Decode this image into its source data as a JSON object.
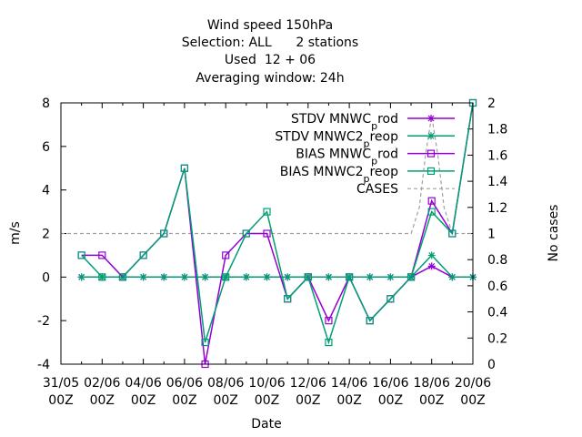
{
  "chart_data": {
    "type": "line",
    "title_lines": [
      "Wind speed 150hPa",
      "Selection: ALL      2 stations",
      "Used  12 + 06",
      "Averaging window: 24h"
    ],
    "xlabel": "Date",
    "ylabel": "m/s",
    "y2label": "No cases",
    "ylim": [
      -4,
      8
    ],
    "y2lim": [
      0,
      2
    ],
    "yticks": [
      "-4",
      "-2",
      "0",
      "2",
      "4",
      "6",
      "8"
    ],
    "y2ticks": [
      "0",
      "0.2",
      "0.4",
      "0.6",
      "0.8",
      "1",
      "1.2",
      "1.4",
      "1.6",
      "1.8",
      "2"
    ],
    "xlim": [
      0,
      20
    ],
    "xticks": [
      {
        "x": 0,
        "l1": "31/05",
        "l2": "00Z"
      },
      {
        "x": 2,
        "l1": "02/06",
        "l2": "00Z"
      },
      {
        "x": 4,
        "l1": "04/06",
        "l2": "00Z"
      },
      {
        "x": 6,
        "l1": "06/06",
        "l2": "00Z"
      },
      {
        "x": 8,
        "l1": "08/06",
        "l2": "00Z"
      },
      {
        "x": 10,
        "l1": "10/06",
        "l2": "00Z"
      },
      {
        "x": 12,
        "l1": "12/06",
        "l2": "00Z"
      },
      {
        "x": 14,
        "l1": "14/06",
        "l2": "00Z"
      },
      {
        "x": 16,
        "l1": "16/06",
        "l2": "00Z"
      },
      {
        "x": 18,
        "l1": "18/06",
        "l2": "00Z"
      },
      {
        "x": 20,
        "l1": "20/06",
        "l2": "00Z"
      }
    ],
    "legend_position": "top-right",
    "series": [
      {
        "name": "STDV MNWC_prod",
        "name_main": "STDV MNWC",
        "name_sub": "p",
        "name_tail": "rod",
        "color": "#9400d3",
        "marker": "star",
        "axis": "y",
        "x": [
          1,
          2,
          3,
          4,
          5,
          6,
          7,
          8,
          9,
          10,
          11,
          12,
          13,
          14,
          15,
          16,
          17,
          18,
          19,
          20
        ],
        "y": [
          0,
          0,
          0,
          0,
          0,
          0,
          0,
          0,
          0,
          0,
          0,
          0,
          0,
          0,
          0,
          0,
          0,
          0.5,
          0,
          0
        ]
      },
      {
        "name": "STDV MNWC2_preop",
        "name_main": "STDV MNWC2",
        "name_sub": "p",
        "name_tail": "reop",
        "color": "#009e73",
        "marker": "star",
        "axis": "y",
        "x": [
          1,
          2,
          3,
          4,
          5,
          6,
          7,
          8,
          9,
          10,
          11,
          12,
          13,
          14,
          15,
          16,
          17,
          18,
          19,
          20
        ],
        "y": [
          0,
          0,
          0,
          0,
          0,
          0,
          0,
          0,
          0,
          0,
          0,
          0,
          0,
          0,
          0,
          0,
          0,
          1,
          0,
          0
        ]
      },
      {
        "name": "BIAS MNWC_prod",
        "name_main": "BIAS MNWC",
        "name_sub": "p",
        "name_tail": "rod",
        "color": "#9400d3",
        "marker": "box",
        "axis": "y",
        "x": [
          1,
          2,
          3,
          4,
          5,
          6,
          7,
          8,
          9,
          10,
          11,
          12,
          13,
          14,
          15,
          16,
          17,
          18,
          19,
          20
        ],
        "y": [
          1,
          1,
          0,
          1,
          2,
          5,
          -4,
          1,
          2,
          2,
          -1,
          0,
          -2,
          0,
          -2,
          -1,
          0,
          3.5,
          2,
          8
        ]
      },
      {
        "name": "BIAS MNWC2_preop",
        "name_main": "BIAS MNWC2",
        "name_sub": "p",
        "name_tail": "reop",
        "color": "#009e73",
        "marker": "box",
        "axis": "y",
        "x": [
          1,
          2,
          3,
          4,
          5,
          6,
          7,
          8,
          9,
          10,
          11,
          12,
          13,
          14,
          15,
          16,
          17,
          18,
          19,
          20
        ],
        "y": [
          1,
          0,
          0,
          1,
          2,
          5,
          -3,
          0,
          2,
          3,
          -1,
          0,
          -3,
          0,
          -2,
          -1,
          0,
          3,
          2,
          8
        ]
      },
      {
        "name": "CASES",
        "name_main": "CASES",
        "name_sub": "",
        "name_tail": "",
        "color": "#a0a0a0",
        "marker": "none",
        "dash": true,
        "axis": "y2",
        "x": [
          0,
          1,
          2,
          3,
          4,
          5,
          6,
          7,
          8,
          9,
          10,
          11,
          12,
          13,
          14,
          15,
          16,
          17,
          17.4,
          17.7,
          18,
          18.3,
          18.6,
          19,
          20
        ],
        "y": [
          1,
          1,
          1,
          1,
          1,
          1,
          1,
          1,
          1,
          1,
          1,
          1,
          1,
          1,
          1,
          1,
          1,
          1,
          1.2,
          1.6,
          1.9,
          1.6,
          1.2,
          1,
          1
        ]
      }
    ]
  }
}
